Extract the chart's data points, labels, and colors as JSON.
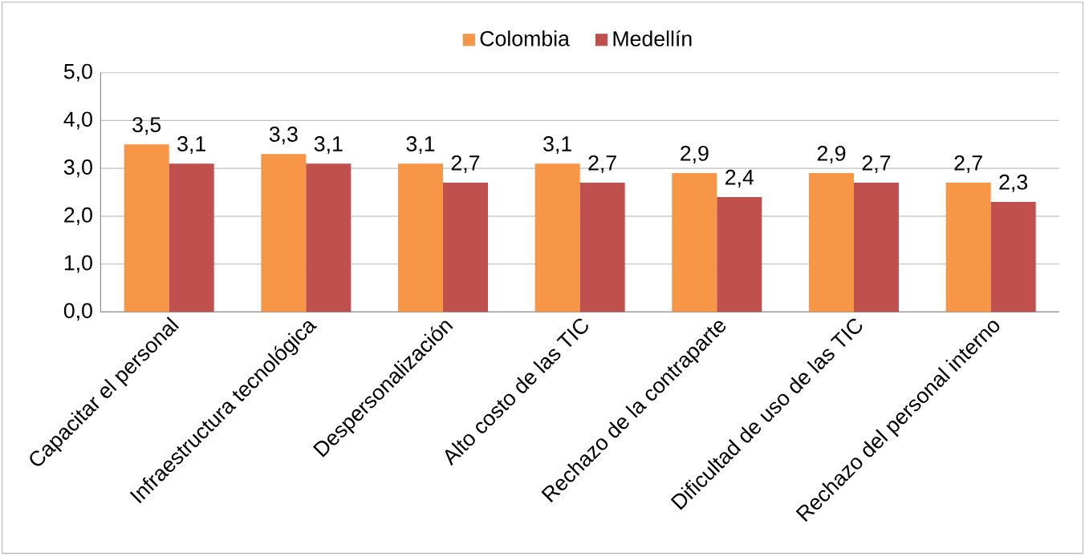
{
  "chart_data": {
    "type": "bar",
    "categories": [
      "Capacitar el personal",
      "Infraestructura tecnológica",
      "Despersonalización",
      "Alto costo de las TIC",
      "Rechazo de la contraparte",
      "Dificultad de uso de las TIC",
      "Rechazo del personal interno"
    ],
    "series": [
      {
        "name": "Colombia",
        "color": "#f79646",
        "values": [
          3.5,
          3.3,
          3.1,
          3.1,
          2.9,
          2.9,
          2.7
        ],
        "value_labels": [
          "3,5",
          "3,3",
          "3,1",
          "3,1",
          "2,9",
          "2,9",
          "2,7"
        ]
      },
      {
        "name": "Medellín",
        "color": "#c0504d",
        "values": [
          3.1,
          3.1,
          2.7,
          2.7,
          2.4,
          2.7,
          2.3
        ],
        "value_labels": [
          "3,1",
          "3,1",
          "2,7",
          "2,7",
          "2,4",
          "2,7",
          "2,3"
        ]
      }
    ],
    "ylim": [
      0,
      5
    ],
    "yticks": [
      {
        "value": 0,
        "label": "0,0"
      },
      {
        "value": 1,
        "label": "1,0"
      },
      {
        "value": 2,
        "label": "2,0"
      },
      {
        "value": 3,
        "label": "3,0"
      },
      {
        "value": 4,
        "label": "4,0"
      },
      {
        "value": 5,
        "label": "5,0"
      }
    ],
    "grid": "y",
    "legend": "top"
  }
}
